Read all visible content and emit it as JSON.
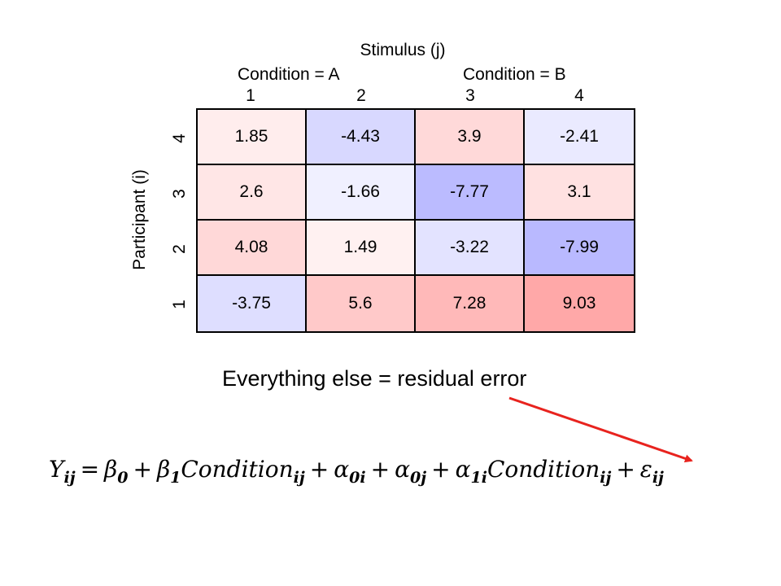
{
  "chart_data": {
    "type": "heatmap",
    "title": "Stimulus (j)",
    "ylabel": "Participant (i)",
    "column_groups": [
      {
        "label": "Condition = A",
        "columns": [
          "1",
          "2"
        ]
      },
      {
        "label": "Condition = B",
        "columns": [
          "3",
          "4"
        ]
      }
    ],
    "x_ticks": [
      "1",
      "2",
      "3",
      "4"
    ],
    "y_ticks": [
      "4",
      "3",
      "2",
      "1"
    ],
    "rows": [
      {
        "participant": "4",
        "values": [
          1.85,
          -4.43,
          3.9,
          -2.41
        ],
        "labels": [
          "1.85",
          "-4.43",
          "3.9",
          "-2.41"
        ]
      },
      {
        "participant": "3",
        "values": [
          2.6,
          -1.66,
          -7.77,
          3.1
        ],
        "labels": [
          "2.6",
          "-1.66",
          "-7.77",
          "3.1"
        ]
      },
      {
        "participant": "2",
        "values": [
          4.08,
          1.49,
          -3.22,
          -7.99
        ],
        "labels": [
          "4.08",
          "1.49",
          "-3.22",
          "-7.99"
        ]
      },
      {
        "participant": "1",
        "values": [
          -3.75,
          5.6,
          7.28,
          9.03
        ],
        "labels": [
          "-3.75",
          "5.6",
          "7.28",
          "9.03"
        ]
      }
    ],
    "color_scale": {
      "negative": "#b0b0ff",
      "positive": "#ffa8a8",
      "neutral": "#ffffff",
      "max_abs": 9.03
    }
  },
  "caption": "Everything else = residual error",
  "equation": {
    "terms": [
      {
        "sym": "Y",
        "sub": "ij"
      },
      {
        "op": "="
      },
      {
        "sym": "β",
        "sub": "0"
      },
      {
        "op": "+"
      },
      {
        "sym": "β",
        "sub": "1"
      },
      {
        "sym": "Condition",
        "sub": "ij"
      },
      {
        "op": "+"
      },
      {
        "sym": "α",
        "sub": "0i"
      },
      {
        "op": "+"
      },
      {
        "sym": "α",
        "sub": "0j"
      },
      {
        "op": "+"
      },
      {
        "sym": "α",
        "sub": "1i"
      },
      {
        "sym": "Condition",
        "sub": "ij"
      },
      {
        "op": "+"
      },
      {
        "sym": "ε",
        "sub": "ij"
      }
    ]
  },
  "colors": {
    "arrow": "#e8231e"
  }
}
